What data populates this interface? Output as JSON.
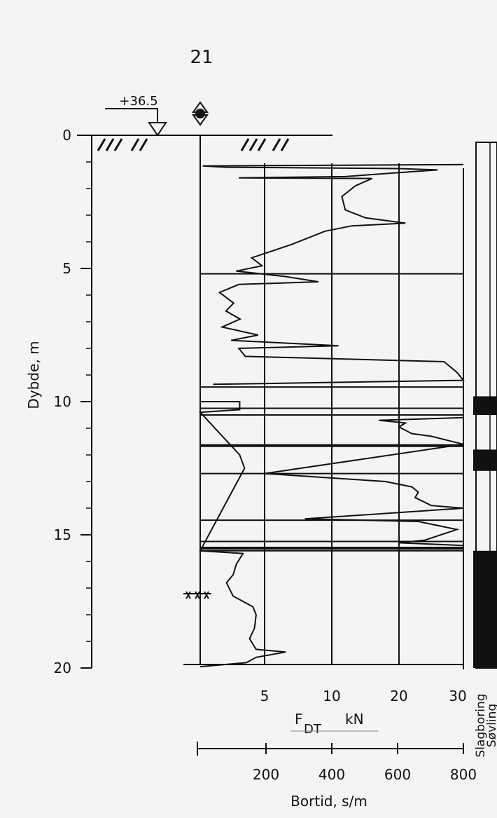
{
  "page_number": "21",
  "chart_data": {
    "type": "line",
    "elevation_label": "+36.5",
    "ylabel": "Dybde, m",
    "y_ticks": [
      "0",
      "5",
      "10",
      "15",
      "20"
    ],
    "ylim": [
      0,
      20
    ],
    "fdt_axis": {
      "label_main": "F",
      "label_sub": "DT",
      "label_unit": "kN",
      "ticks": [
        "5",
        "10",
        "20",
        "30"
      ],
      "scale": "log-like"
    },
    "bortid_axis": {
      "label": "Bortid, s/m",
      "ticks": [
        "200",
        "400",
        "600",
        "800"
      ],
      "xlim": [
        0,
        800
      ]
    },
    "column_labels": [
      "Slagboring",
      "Søvling"
    ],
    "groundwater_marker": "⫺",
    "fdt_series": [
      {
        "d": 1.1,
        "v": 30.0
      },
      {
        "d": 1.15,
        "v": 0.2
      },
      {
        "d": 1.2,
        "v": 2.0
      },
      {
        "d": 1.25,
        "v": 20.0
      },
      {
        "d": 1.3,
        "v": 26.0
      },
      {
        "d": 1.4,
        "v": 20.0
      },
      {
        "d": 1.55,
        "v": 12.0
      },
      {
        "d": 1.6,
        "v": 3.0
      },
      {
        "d": 1.62,
        "v": 16.0
      },
      {
        "d": 1.9,
        "v": 13.5
      },
      {
        "d": 2.3,
        "v": 11.5
      },
      {
        "d": 2.8,
        "v": 12.0
      },
      {
        "d": 3.1,
        "v": 15.0
      },
      {
        "d": 3.3,
        "v": 21.0
      },
      {
        "d": 3.4,
        "v": 13.0
      },
      {
        "d": 3.6,
        "v": 9.5
      },
      {
        "d": 4.1,
        "v": 7.0
      },
      {
        "d": 4.6,
        "v": 4.0
      },
      {
        "d": 4.9,
        "v": 4.8
      },
      {
        "d": 5.1,
        "v": 2.8
      },
      {
        "d": 5.3,
        "v": 6.5
      },
      {
        "d": 5.5,
        "v": 9.0
      },
      {
        "d": 5.6,
        "v": 3.0
      },
      {
        "d": 5.9,
        "v": 1.5
      },
      {
        "d": 6.3,
        "v": 2.6
      },
      {
        "d": 6.6,
        "v": 2.0
      },
      {
        "d": 6.9,
        "v": 3.1
      },
      {
        "d": 7.2,
        "v": 1.7
      },
      {
        "d": 7.5,
        "v": 4.5
      },
      {
        "d": 7.7,
        "v": 2.4
      },
      {
        "d": 7.9,
        "v": 11.0
      },
      {
        "d": 8.0,
        "v": 3.0
      },
      {
        "d": 8.3,
        "v": 3.5
      },
      {
        "d": 8.5,
        "v": 27.0
      },
      {
        "d": 8.9,
        "v": 29.0
      },
      {
        "d": 9.2,
        "v": 30.0
      },
      {
        "d": 9.35,
        "v": 1.0
      }
    ],
    "bortid_series": [
      {
        "d": 10.0,
        "v": 0
      },
      {
        "d": 10.0,
        "v": 120
      },
      {
        "d": 10.3,
        "v": 120
      },
      {
        "d": 10.4,
        "v": 0
      },
      {
        "d": 12.0,
        "v": 120
      },
      {
        "d": 12.5,
        "v": 135
      },
      {
        "d": 15.6,
        "v": 0
      },
      {
        "d": 15.7,
        "v": 130
      },
      {
        "d": 16.1,
        "v": 110
      },
      {
        "d": 16.5,
        "v": 100
      },
      {
        "d": 16.8,
        "v": 80
      },
      {
        "d": 17.3,
        "v": 100
      },
      {
        "d": 17.7,
        "v": 160
      },
      {
        "d": 18.0,
        "v": 170
      },
      {
        "d": 18.5,
        "v": 165
      },
      {
        "d": 18.9,
        "v": 150
      },
      {
        "d": 19.3,
        "v": 170
      },
      {
        "d": 19.4,
        "v": 260
      },
      {
        "d": 19.6,
        "v": 170
      },
      {
        "d": 19.8,
        "v": 140
      },
      {
        "d": 19.95,
        "v": 0
      }
    ],
    "fdt_series_2": [
      {
        "d": 10.6,
        "v": 30.0
      },
      {
        "d": 10.7,
        "v": 17.0
      },
      {
        "d": 10.8,
        "v": 21.0
      },
      {
        "d": 10.95,
        "v": 20.0
      },
      {
        "d": 11.2,
        "v": 22.0
      },
      {
        "d": 11.3,
        "v": 25.0
      },
      {
        "d": 11.6,
        "v": 30.0
      },
      {
        "d": 12.7,
        "v": 5.0
      },
      {
        "d": 13.0,
        "v": 18.0
      },
      {
        "d": 13.2,
        "v": 22.0
      },
      {
        "d": 13.4,
        "v": 23.0
      },
      {
        "d": 13.6,
        "v": 22.5
      },
      {
        "d": 13.9,
        "v": 25.0
      },
      {
        "d": 14.0,
        "v": 30.0
      },
      {
        "d": 14.4,
        "v": 8.0
      },
      {
        "d": 14.5,
        "v": 23.0
      },
      {
        "d": 14.8,
        "v": 29.0
      },
      {
        "d": 15.2,
        "v": 24.0
      },
      {
        "d": 15.3,
        "v": 20.0
      },
      {
        "d": 15.4,
        "v": 30.0
      }
    ],
    "band_lines_depth": [
      5.2,
      9.45,
      10.25,
      10.5,
      11.65,
      12.7,
      14.45,
      15.25,
      15.5,
      15.6
    ],
    "black_layers": [
      {
        "from": 9.8,
        "to": 10.5
      },
      {
        "from": 11.8,
        "to": 12.6
      },
      {
        "from": 15.6,
        "to": 20.0
      }
    ]
  }
}
